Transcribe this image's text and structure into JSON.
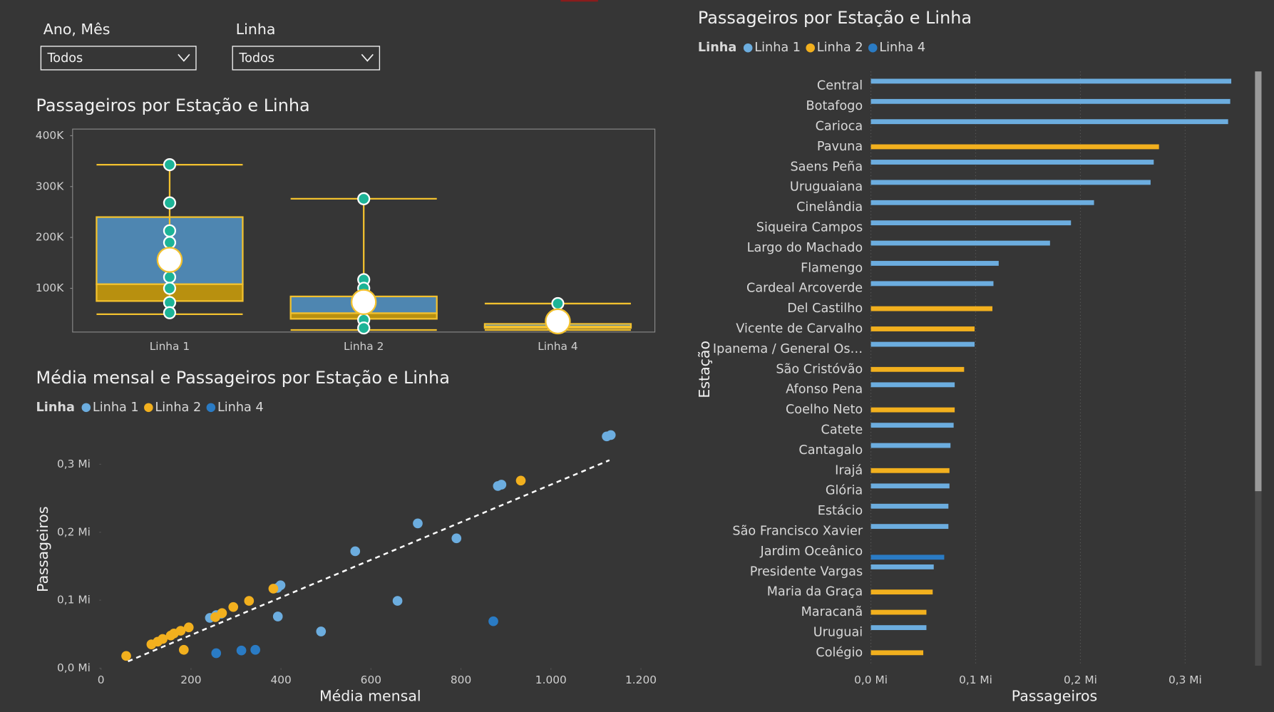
{
  "filters": [
    {
      "label": "Ano, Mês",
      "value": "Todos"
    },
    {
      "label": "Linha",
      "value": "Todos"
    }
  ],
  "chart_data": [
    {
      "type": "box",
      "title": "Passageiros por Estação e Linha",
      "categories": [
        "Linha 1",
        "Linha 2",
        "Linha 4"
      ],
      "ylim": [
        14000,
        413000
      ],
      "yticks": [
        {
          "value": 100000,
          "label": "100K"
        },
        {
          "value": 200000,
          "label": "200K"
        },
        {
          "value": 300000,
          "label": "300K"
        },
        {
          "value": 400000,
          "label": "400K"
        }
      ],
      "colors": {
        "upper": "#4e86b1",
        "lower": "#b8900f",
        "line": "#f2c12e",
        "point": "#1db497",
        "mean": "#ffffff"
      },
      "boxes": [
        {
          "min": 49000,
          "q1": 75000,
          "median": 108000,
          "q3": 240000,
          "max": 343000,
          "mean": 156000,
          "points": [
            343000,
            268000,
            213000,
            190000,
            122000,
            100000,
            72000,
            52000
          ]
        },
        {
          "min": 18000,
          "q1": 40000,
          "median": 51000,
          "q3": 84000,
          "max": 276000,
          "mean": 73000,
          "points": [
            276000,
            117000,
            100000,
            38000,
            22000
          ]
        },
        {
          "min": 18000,
          "q1": 22000,
          "median": 25000,
          "q3": 30000,
          "max": 70000,
          "mean": 35000,
          "points": [
            70000
          ]
        }
      ]
    },
    {
      "type": "scatter",
      "title": "Média mensal e Passageiros por Estação e Linha",
      "x_label": "Média mensal",
      "y_label": "Passageiros",
      "legend_title": "Linha",
      "xlim": [
        0,
        1240
      ],
      "xticks": [
        0,
        200,
        400,
        600,
        800,
        {
          "value": 1000,
          "label": "1.000"
        },
        {
          "value": 1200,
          "label": "1.200"
        }
      ],
      "ylim": [
        0,
        350000
      ],
      "yticks": [
        {
          "value": 0,
          "label": "0,0 Mi"
        },
        {
          "value": 100000,
          "label": "0,1 Mi"
        },
        {
          "value": 200000,
          "label": "0,2 Mi"
        },
        {
          "value": 300000,
          "label": "0,3 Mi"
        }
      ],
      "series": [
        {
          "name": "Linha 1",
          "color": "#6caddf",
          "x": [
            1133,
            1124,
            890,
            882,
            704,
            790,
            565,
            399,
            392,
            659,
            393,
            489,
            267,
            256,
            242
          ],
          "values": [
            343000,
            341000,
            270000,
            268000,
            213000,
            191000,
            172000,
            122000,
            118000,
            99000,
            76000,
            54000,
            80000,
            78000,
            74000
          ]
        },
        {
          "name": "Linha 2",
          "color": "#f2b01e",
          "x": [
            933,
            383,
            329,
            294,
            269,
            254,
            195,
            177,
            162,
            155,
            137,
            126,
            112,
            184,
            56
          ],
          "values": [
            276000,
            117000,
            99000,
            90000,
            81000,
            75000,
            60000,
            55000,
            51000,
            48000,
            43000,
            39000,
            35000,
            27000,
            18000
          ]
        },
        {
          "name": "Linha 4",
          "color": "#2a7bc4",
          "x": [
            872,
            256,
            312,
            343
          ],
          "values": [
            69000,
            22000,
            26000,
            27000
          ]
        }
      ],
      "trendline": {
        "x": [
          60,
          1130
        ],
        "values": [
          10000,
          306000
        ],
        "color": "#ffffff"
      }
    },
    {
      "type": "bar",
      "orientation": "horizontal",
      "title": "Passageiros por Estação e Linha",
      "x_label": "Passageiros",
      "y_label": "Estação",
      "legend_title": "Linha",
      "grid": true,
      "xlim": [
        0,
        350000
      ],
      "xticks": [
        {
          "value": 0,
          "label": "0,0 Mi"
        },
        {
          "value": 100000,
          "label": "0,1 Mi"
        },
        {
          "value": 200000,
          "label": "0,2 Mi"
        },
        {
          "value": 300000,
          "label": "0,3 Mi"
        }
      ],
      "categories": [
        "Central",
        "Botafogo",
        "Carioca",
        "Pavuna",
        "Saens Peña",
        "Uruguaiana",
        "Cinelândia",
        "Siqueira Campos",
        "Largo do Machado",
        "Flamengo",
        "Cardeal Arcoverde",
        "Del Castilho",
        "Vicente de Carvalho",
        "Ipanema / General Os…",
        "São Cristóvão",
        "Afonso Pena",
        "Coelho Neto",
        "Catete",
        "Cantagalo",
        "Irajá",
        "Glória",
        "Estácio",
        "São Francisco Xavier",
        "Jardim Oceânico",
        "Presidente Vargas",
        "Maria da Graça",
        "Maracanã",
        "Uruguai",
        "Colégio"
      ],
      "series": [
        {
          "name": "Linha 1",
          "color": "#6caddf",
          "values": [
            344000,
            343000,
            341000,
            null,
            270000,
            267000,
            213000,
            191000,
            171000,
            122000,
            117000,
            null,
            null,
            99000,
            null,
            80000,
            null,
            79000,
            76000,
            null,
            75000,
            74000,
            74000,
            null,
            60000,
            null,
            null,
            53000,
            null
          ]
        },
        {
          "name": "Linha 2",
          "color": "#f2b01e",
          "values": [
            null,
            null,
            null,
            275000,
            null,
            null,
            null,
            null,
            null,
            null,
            null,
            116000,
            99000,
            null,
            89000,
            null,
            80000,
            null,
            null,
            75000,
            null,
            null,
            null,
            null,
            null,
            59000,
            53000,
            null,
            50000
          ]
        },
        {
          "name": "Linha 4",
          "color": "#2a7bc4",
          "values": [
            null,
            null,
            null,
            null,
            null,
            null,
            null,
            null,
            null,
            null,
            null,
            null,
            null,
            null,
            null,
            null,
            null,
            null,
            null,
            null,
            null,
            null,
            null,
            70000,
            null,
            null,
            null,
            null,
            null
          ]
        }
      ]
    }
  ]
}
